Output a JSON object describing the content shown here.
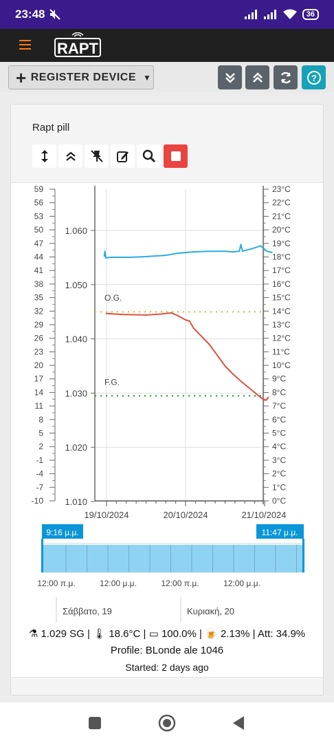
{
  "status": {
    "time": "23:48",
    "battery": "36"
  },
  "toolbar": {
    "register_label": "REGISTER DEVICE"
  },
  "device": {
    "name": "Rapt pill"
  },
  "chart_data": {
    "type": "line",
    "x_ticks": [
      "19/10/2024",
      "20/10/2024",
      "21/10/2024"
    ],
    "left_axis_ticks": [
      "59",
      "56",
      "53",
      "50",
      "47",
      "44",
      "41",
      "38",
      "35",
      "32",
      "29",
      "26",
      "23",
      "20",
      "17",
      "14",
      "11",
      "8",
      "5",
      "2",
      "-1",
      "-4",
      "-7",
      "-10"
    ],
    "gravity_ticks": [
      "1.060",
      "1.050",
      "1.040",
      "1.030",
      "1.020",
      "1.010"
    ],
    "temp_ticks": [
      "23°C",
      "22°C",
      "21°C",
      "20°C",
      "19°C",
      "18°C",
      "17°C",
      "16°C",
      "15°C",
      "14°C",
      "13°C",
      "12°C",
      "11°C",
      "10°C",
      "9°C",
      "8°C",
      "7°C",
      "6°C",
      "5°C",
      "4°C",
      "3°C",
      "2°C",
      "1°C",
      "0°C"
    ],
    "og": {
      "label": "O.G.",
      "value": 1.045
    },
    "fg": {
      "label": "F.G.",
      "value": 1.0295
    },
    "series": [
      {
        "name": "temperature",
        "axis": "temp",
        "color": "#29abe2",
        "points": [
          [
            -0.03,
            18.0
          ],
          [
            -0.02,
            18.4
          ],
          [
            -0.01,
            17.9
          ],
          [
            0.05,
            17.95
          ],
          [
            0.3,
            17.95
          ],
          [
            0.5,
            18.0
          ],
          [
            0.75,
            18.1
          ],
          [
            0.9,
            18.25
          ],
          [
            1.1,
            18.35
          ],
          [
            1.3,
            18.4
          ],
          [
            1.5,
            18.4
          ],
          [
            1.6,
            18.35
          ],
          [
            1.68,
            18.4
          ],
          [
            1.7,
            18.9
          ],
          [
            1.72,
            18.4
          ],
          [
            1.85,
            18.6
          ],
          [
            1.95,
            18.8
          ],
          [
            2.03,
            18.4
          ],
          [
            2.1,
            18.3
          ]
        ]
      },
      {
        "name": "gravity",
        "axis": "gravity",
        "color": "#e0503c",
        "points": [
          [
            -0.01,
            1.0447
          ],
          [
            0.2,
            1.0445
          ],
          [
            0.5,
            1.0444
          ],
          [
            0.7,
            1.0446
          ],
          [
            0.82,
            1.0448
          ],
          [
            0.9,
            1.0443
          ],
          [
            1.0,
            1.0435
          ],
          [
            1.05,
            1.0433
          ],
          [
            1.1,
            1.042
          ],
          [
            1.2,
            1.0405
          ],
          [
            1.3,
            1.039
          ],
          [
            1.4,
            1.037
          ],
          [
            1.5,
            1.035
          ],
          [
            1.6,
            1.0335
          ],
          [
            1.7,
            1.0322
          ],
          [
            1.8,
            1.031
          ],
          [
            1.9,
            1.0298
          ],
          [
            1.95,
            1.0292
          ],
          [
            2.0,
            1.0287
          ],
          [
            2.02,
            1.0287
          ],
          [
            2.05,
            1.0293
          ]
        ]
      }
    ],
    "range": {
      "start": "9:16 μ.μ.",
      "end": "11:47 μ.μ."
    },
    "range_ticks": [
      "12:00 π.μ.",
      "12:00 μ.μ.",
      "12:00 π.μ.",
      "12:00 μ.μ."
    ],
    "range_days": [
      "Σάββατο, 19",
      "Κυριακή, 20"
    ]
  },
  "stats": {
    "sg": "1.029 SG",
    "temp": "18.6°C",
    "battery": "100.0%",
    "abv": "2.13%",
    "att": "Att: 34.9%"
  },
  "profile": "Profile: BLonde ale 1046",
  "started": "Started: 2 days ago"
}
